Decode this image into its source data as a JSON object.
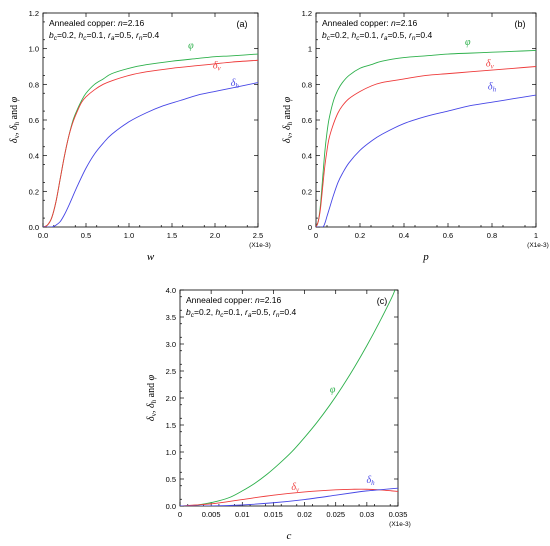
{
  "colors": {
    "phi": "#2db04b",
    "delta_v": "#ee3b3b",
    "delta_h": "#4747e6",
    "axis": "#000000"
  },
  "chart_data": [
    {
      "panel": "(a)",
      "type": "line",
      "annotation": {
        "line1_prefix": "Annealed copper: ",
        "line1_var": "n",
        "line1_value": "=2.16",
        "line2": [
          [
            "b",
            "c",
            "=0.2, "
          ],
          [
            "h",
            "c",
            "=0.1, "
          ],
          [
            "r",
            "a",
            "=0.5, "
          ],
          [
            "r",
            "n",
            "=0.4"
          ]
        ]
      },
      "xlabel": "w",
      "ylabel": "δv, δh and φ",
      "xscale_label": "(X1e-3)",
      "xlim": [
        0,
        2.5
      ],
      "ylim": [
        0,
        1.2
      ],
      "xticks": [
        "0.0",
        "0.5",
        "1.0",
        "1.5",
        "2.0",
        "2.5"
      ],
      "yticks": [
        "0.0",
        "0.2",
        "0.4",
        "0.6",
        "0.8",
        "1.0",
        "1.2"
      ],
      "series": [
        {
          "name": "φ",
          "key": "phi",
          "x": [
            0,
            0.05,
            0.1,
            0.15,
            0.2,
            0.25,
            0.3,
            0.35,
            0.4,
            0.45,
            0.5,
            0.6,
            0.7,
            0.8,
            1.0,
            1.2,
            1.5,
            1.8,
            2.0,
            2.2,
            2.5
          ],
          "y": [
            0,
            0.01,
            0.05,
            0.14,
            0.27,
            0.4,
            0.51,
            0.6,
            0.66,
            0.71,
            0.75,
            0.8,
            0.83,
            0.86,
            0.89,
            0.91,
            0.93,
            0.945,
            0.955,
            0.96,
            0.97
          ]
        },
        {
          "name": "δv",
          "key": "delta_v",
          "x": [
            0,
            0.05,
            0.1,
            0.15,
            0.2,
            0.25,
            0.3,
            0.35,
            0.4,
            0.45,
            0.5,
            0.6,
            0.7,
            0.8,
            1.0,
            1.2,
            1.5,
            1.8,
            2.0,
            2.2,
            2.5
          ],
          "y": [
            0,
            0.01,
            0.05,
            0.14,
            0.27,
            0.4,
            0.51,
            0.59,
            0.65,
            0.7,
            0.73,
            0.77,
            0.8,
            0.82,
            0.85,
            0.87,
            0.89,
            0.905,
            0.915,
            0.925,
            0.935
          ]
        },
        {
          "name": "δh",
          "key": "delta_h",
          "x": [
            0,
            0.1,
            0.15,
            0.2,
            0.25,
            0.3,
            0.4,
            0.5,
            0.6,
            0.7,
            0.8,
            1.0,
            1.2,
            1.4,
            1.6,
            1.8,
            2.0,
            2.2,
            2.5
          ],
          "y": [
            0,
            0,
            0.01,
            0.03,
            0.07,
            0.12,
            0.23,
            0.33,
            0.41,
            0.47,
            0.52,
            0.59,
            0.64,
            0.68,
            0.71,
            0.74,
            0.76,
            0.78,
            0.81
          ]
        }
      ],
      "labels": [
        {
          "key": "phi",
          "text": "φ",
          "x": 1.72,
          "y": 1.0
        },
        {
          "key": "delta_v",
          "text": "δv",
          "x": 2.02,
          "y": 0.89
        },
        {
          "key": "delta_h",
          "text": "δh",
          "x": 2.23,
          "y": 0.79
        }
      ]
    },
    {
      "panel": "(b)",
      "type": "line",
      "annotation": {
        "line1_prefix": "Annealed copper: ",
        "line1_var": "n",
        "line1_value": "=2.16",
        "line2": [
          [
            "b",
            "c",
            "=0.2, "
          ],
          [
            "h",
            "c",
            "=0.1, "
          ],
          [
            "r",
            "a",
            "=0.5, "
          ],
          [
            "r",
            "n",
            "=0.4"
          ]
        ]
      },
      "xlabel": "p",
      "ylabel": "δv, δh and φ",
      "xscale_label": "(X1e-3)",
      "xlim": [
        0,
        1
      ],
      "ylim": [
        0,
        1.2
      ],
      "xticks": [
        "0",
        "0.2",
        "0.4",
        "0.6",
        "0.8",
        "1"
      ],
      "yticks": [
        "0",
        "0.2",
        "0.4",
        "0.6",
        "0.8",
        "1",
        "1.2"
      ],
      "series": [
        {
          "name": "φ",
          "key": "phi",
          "x": [
            0,
            0.01,
            0.02,
            0.03,
            0.04,
            0.05,
            0.06,
            0.08,
            0.1,
            0.12,
            0.15,
            0.2,
            0.25,
            0.3,
            0.4,
            0.5,
            0.6,
            0.7,
            0.8,
            0.9,
            1.0
          ],
          "y": [
            0,
            0.03,
            0.12,
            0.27,
            0.42,
            0.53,
            0.61,
            0.71,
            0.77,
            0.81,
            0.85,
            0.89,
            0.91,
            0.93,
            0.95,
            0.96,
            0.97,
            0.975,
            0.98,
            0.985,
            0.99
          ]
        },
        {
          "name": "δv",
          "key": "delta_v",
          "x": [
            0,
            0.01,
            0.02,
            0.03,
            0.04,
            0.05,
            0.06,
            0.08,
            0.1,
            0.12,
            0.15,
            0.2,
            0.25,
            0.3,
            0.4,
            0.5,
            0.6,
            0.7,
            0.8,
            0.9,
            1.0
          ],
          "y": [
            0,
            0.03,
            0.1,
            0.22,
            0.34,
            0.43,
            0.5,
            0.58,
            0.64,
            0.68,
            0.72,
            0.76,
            0.79,
            0.81,
            0.83,
            0.85,
            0.86,
            0.87,
            0.88,
            0.89,
            0.9
          ]
        },
        {
          "name": "δh",
          "key": "delta_h",
          "x": [
            0,
            0.03,
            0.04,
            0.05,
            0.06,
            0.08,
            0.1,
            0.12,
            0.15,
            0.2,
            0.25,
            0.3,
            0.4,
            0.5,
            0.6,
            0.7,
            0.8,
            0.9,
            1.0
          ],
          "y": [
            0,
            0,
            0.02,
            0.06,
            0.1,
            0.18,
            0.25,
            0.3,
            0.36,
            0.43,
            0.48,
            0.52,
            0.58,
            0.62,
            0.65,
            0.68,
            0.7,
            0.72,
            0.74
          ]
        }
      ],
      "labels": [
        {
          "key": "phi",
          "text": "φ",
          "x": 0.69,
          "y": 1.02
        },
        {
          "key": "delta_v",
          "text": "δv",
          "x": 0.79,
          "y": 0.9
        },
        {
          "key": "delta_h",
          "text": "δh",
          "x": 0.8,
          "y": 0.77
        }
      ]
    },
    {
      "panel": "(c)",
      "type": "line",
      "annotation": {
        "line1_prefix": "Annealed copper: ",
        "line1_var": "n",
        "line1_value": "=2.16",
        "line2": [
          [
            "b",
            "c",
            "=0.2, "
          ],
          [
            "h",
            "c",
            "=0.1, "
          ],
          [
            "r",
            "a",
            "=0.5, "
          ],
          [
            "r",
            "n",
            "=0.4"
          ]
        ]
      },
      "xlabel": "c",
      "ylabel": "δv, δh and φ",
      "xscale_label": "(X1e-3)",
      "xlim": [
        0,
        0.035
      ],
      "ylim": [
        0,
        4.0
      ],
      "xticks": [
        "0",
        "0.005",
        "0.01",
        "0.015",
        "0.02",
        "0.025",
        "0.03",
        "0.035"
      ],
      "yticks": [
        "0.0",
        "0.5",
        "1.0",
        "1.5",
        "2.0",
        "2.5",
        "3.0",
        "3.5",
        "4.0"
      ],
      "series": [
        {
          "name": "φ",
          "key": "phi",
          "x": [
            0,
            0.002,
            0.004,
            0.006,
            0.008,
            0.01,
            0.012,
            0.014,
            0.016,
            0.018,
            0.02,
            0.022,
            0.024,
            0.026,
            0.028,
            0.03,
            0.032,
            0.034,
            0.0345
          ],
          "y": [
            0,
            0.01,
            0.04,
            0.09,
            0.16,
            0.28,
            0.42,
            0.59,
            0.79,
            1.01,
            1.27,
            1.55,
            1.86,
            2.2,
            2.57,
            2.97,
            3.4,
            3.86,
            4.0
          ]
        },
        {
          "name": "δv",
          "key": "delta_v",
          "x": [
            0,
            0.005,
            0.01,
            0.015,
            0.02,
            0.025,
            0.028,
            0.03,
            0.032,
            0.034,
            0.035
          ],
          "y": [
            0,
            0.04,
            0.12,
            0.2,
            0.26,
            0.3,
            0.31,
            0.31,
            0.3,
            0.28,
            0.27
          ]
        },
        {
          "name": "δh",
          "key": "delta_h",
          "x": [
            0,
            0.005,
            0.01,
            0.015,
            0.02,
            0.025,
            0.028,
            0.03,
            0.032,
            0.034,
            0.035
          ],
          "y": [
            0,
            0.0,
            0.02,
            0.06,
            0.12,
            0.2,
            0.25,
            0.28,
            0.3,
            0.32,
            0.33
          ]
        }
      ],
      "labels": [
        {
          "key": "phi",
          "text": "φ",
          "x": 0.0245,
          "y": 2.1
        },
        {
          "key": "delta_v",
          "text": "δv",
          "x": 0.0185,
          "y": 0.3
        },
        {
          "key": "delta_h",
          "text": "δh",
          "x": 0.0306,
          "y": 0.43
        }
      ]
    }
  ]
}
